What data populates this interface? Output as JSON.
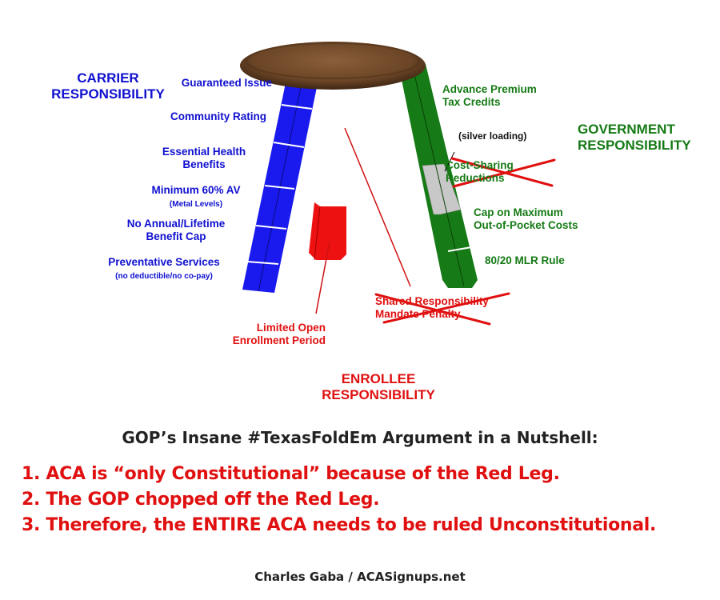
{
  "colors": {
    "carrier": "#1010d0",
    "government": "#157a15",
    "enrollee": "#e01010",
    "seat": "#6b4526",
    "silver": "#c8c8c8"
  },
  "carrier": {
    "heading": [
      "CARRIER",
      "RESPONSIBILITY"
    ],
    "items": [
      "Guaranteed Issue",
      "Community Rating",
      "Essential Health",
      "Benefits",
      "Minimum 60% AV",
      "(Metal Levels)",
      "No Annual/Lifetime",
      "Benefit Cap",
      "Preventative Services",
      "(no deductible/no co-pay)"
    ]
  },
  "government": {
    "heading": [
      "GOVERNMENT",
      "RESPONSIBILITY"
    ],
    "items": [
      "Advance Premium",
      "Tax Credits",
      "(silver loading)",
      "Cost-Sharing",
      "Reductions",
      "Cap on Maximum",
      "Out-of-Pocket Costs",
      "80/20 MLR Rule"
    ]
  },
  "enrollee": {
    "heading": [
      "ENROLLEE",
      "RESPONSIBILITY"
    ],
    "items": [
      "Limited Open",
      "Enrollment Period",
      "Shared Responsibility",
      "Mandate Penalty"
    ]
  },
  "title": "GOP’s Insane #TexasFoldEm Argument in a Nutshell:",
  "points": [
    "1. ACA is “only Constitutional” because of the Red Leg.",
    "2. The GOP chopped off the Red Leg.",
    "3. Therefore, the ENTIRE ACA needs to be ruled Unconstitutional."
  ],
  "credit": "Charles Gaba / ACASignups.net"
}
